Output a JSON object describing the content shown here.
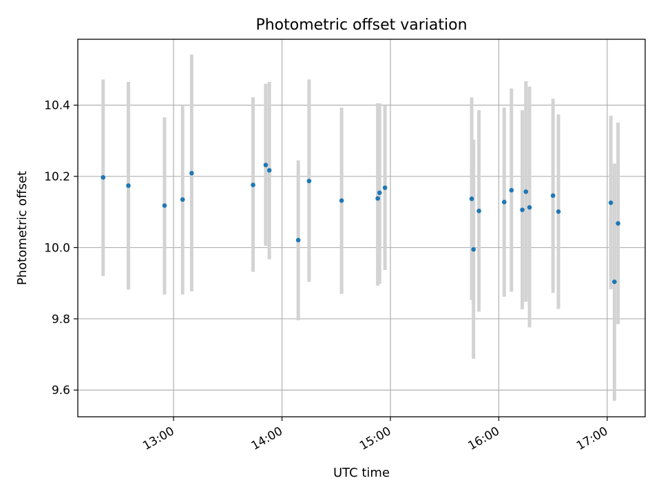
{
  "chart_data": {
    "type": "scatter",
    "title": "Photometric offset variation",
    "xlabel": "UTC time",
    "ylabel": "Photometric offset",
    "xlim": [
      "12:07",
      "17:21"
    ],
    "ylim": [
      9.525,
      10.585
    ],
    "x_ticks": [
      "13:00",
      "14:00",
      "15:00",
      "16:00",
      "17:00"
    ],
    "y_ticks": [
      "9.6",
      "9.8",
      "10.0",
      "10.2",
      "10.4"
    ],
    "grid": true,
    "colors": {
      "point": "#1f77b4",
      "errorbar": "#d3d3d3"
    },
    "series": [
      {
        "marker": "point-with-errorbar",
        "points": [
          {
            "x": "12:21",
            "y": 10.197,
            "y_low": 9.92,
            "y_high": 10.472
          },
          {
            "x": "12:35",
            "y": 10.174,
            "y_low": 9.882,
            "y_high": 10.465
          },
          {
            "x": "12:55",
            "y": 10.118,
            "y_low": 9.868,
            "y_high": 10.366
          },
          {
            "x": "13:05",
            "y": 10.135,
            "y_low": 9.868,
            "y_high": 10.398
          },
          {
            "x": "13:10",
            "y": 10.209,
            "y_low": 9.877,
            "y_high": 10.542
          },
          {
            "x": "13:44",
            "y": 10.176,
            "y_low": 9.932,
            "y_high": 10.422
          },
          {
            "x": "13:51",
            "y": 10.232,
            "y_low": 10.005,
            "y_high": 10.46
          },
          {
            "x": "13:53",
            "y": 10.217,
            "y_low": 9.967,
            "y_high": 10.465
          },
          {
            "x": "14:09",
            "y": 10.021,
            "y_low": 9.796,
            "y_high": 10.245
          },
          {
            "x": "14:15",
            "y": 10.187,
            "y_low": 9.904,
            "y_high": 10.472
          },
          {
            "x": "14:33",
            "y": 10.132,
            "y_low": 9.87,
            "y_high": 10.393
          },
          {
            "x": "14:53",
            "y": 10.138,
            "y_low": 9.893,
            "y_high": 10.405
          },
          {
            "x": "14:54",
            "y": 10.154,
            "y_low": 9.898,
            "y_high": 10.405
          },
          {
            "x": "14:57",
            "y": 10.168,
            "y_low": 9.937,
            "y_high": 10.398
          },
          {
            "x": "15:45",
            "y": 10.137,
            "y_low": 9.853,
            "y_high": 10.422
          },
          {
            "x": "15:46",
            "y": 9.995,
            "y_low": 9.688,
            "y_high": 10.303
          },
          {
            "x": "15:49",
            "y": 10.103,
            "y_low": 9.82,
            "y_high": 10.386
          },
          {
            "x": "16:03",
            "y": 10.128,
            "y_low": 9.862,
            "y_high": 10.393
          },
          {
            "x": "16:07",
            "y": 10.161,
            "y_low": 9.876,
            "y_high": 10.447
          },
          {
            "x": "16:13",
            "y": 10.106,
            "y_low": 9.827,
            "y_high": 10.386
          },
          {
            "x": "16:15",
            "y": 10.157,
            "y_low": 9.848,
            "y_high": 10.467
          },
          {
            "x": "16:17",
            "y": 10.113,
            "y_low": 9.776,
            "y_high": 10.452
          },
          {
            "x": "16:30",
            "y": 10.146,
            "y_low": 9.873,
            "y_high": 10.418
          },
          {
            "x": "16:33",
            "y": 10.101,
            "y_low": 9.828,
            "y_high": 10.374
          },
          {
            "x": "17:02",
            "y": 10.126,
            "y_low": 9.883,
            "y_high": 10.37
          },
          {
            "x": "17:04",
            "y": 9.904,
            "y_low": 9.57,
            "y_high": 10.236
          },
          {
            "x": "17:06",
            "y": 10.068,
            "y_low": 9.785,
            "y_high": 10.351
          }
        ]
      }
    ]
  }
}
